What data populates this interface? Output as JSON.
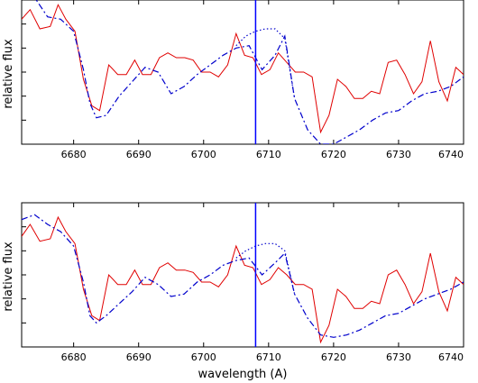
{
  "chart_data": [
    {
      "type": "line",
      "ylabel": "relative flux",
      "xlabel": "",
      "xlim": [
        6672,
        6740
      ],
      "ylim": [
        0,
        6
      ],
      "x_ticks": [
        "6680",
        "6690",
        "6700",
        "6710",
        "6720",
        "6730",
        "6740"
      ],
      "marker_line_x": 6708,
      "grid": false,
      "colors": {
        "observed": "#e00000",
        "model": "#0000cc",
        "model_dotted": "#0000cc",
        "marker": "#0000ff"
      },
      "series": [
        {
          "style": "solid",
          "x": [
            6672,
            6673.3,
            6674.8,
            6676.4,
            6677.6,
            6678.8,
            6680.2,
            6681.5,
            6682.8,
            6684,
            6685.4,
            6686.8,
            6688.1,
            6689.4,
            6690.6,
            6691.9,
            6693.2,
            6694.5,
            6695.8,
            6697.1,
            6698.4,
            6699.7,
            6701,
            6702.3,
            6703.7,
            6705,
            6706.3,
            6707.6,
            6708.9,
            6710.2,
            6711.5,
            6712.8,
            6714.1,
            6715.4,
            6716.7,
            6718,
            6719.3,
            6720.6,
            6721.9,
            6723.2,
            6724.5,
            6725.8,
            6727.1,
            6728.4,
            6729.7,
            6731,
            6732.3,
            6733.6,
            6734.9,
            6736.2,
            6737.5,
            6738.8,
            6740
          ],
          "y": [
            5.2,
            5.6,
            4.8,
            4.9,
            5.8,
            5.2,
            4.7,
            2.7,
            1.6,
            1.4,
            3.3,
            2.9,
            2.9,
            3.5,
            2.9,
            2.9,
            3.6,
            3.8,
            3.6,
            3.6,
            3.5,
            3.0,
            3.0,
            2.8,
            3.3,
            4.6,
            3.7,
            3.6,
            2.9,
            3.1,
            3.8,
            3.4,
            3.0,
            3.0,
            2.8,
            0.5,
            1.2,
            2.7,
            2.4,
            1.9,
            1.9,
            2.2,
            2.1,
            3.4,
            3.5,
            2.9,
            2.1,
            2.6,
            4.3,
            2.6,
            1.8,
            3.2,
            2.9
          ]
        },
        {
          "style": "dash-dot",
          "x": [
            6672,
            6674,
            6676,
            6678,
            6680,
            6681.5,
            6682.5,
            6683.5,
            6685,
            6687,
            6689,
            6691,
            6693,
            6695,
            6697,
            6699,
            6701,
            6703,
            6705,
            6707,
            6709,
            6711,
            6712.5,
            6714,
            6716,
            6718,
            6720,
            6722,
            6724,
            6726,
            6728,
            6730,
            6732,
            6734,
            6736,
            6738,
            6740
          ],
          "y": [
            6.7,
            6.1,
            5.3,
            5.2,
            4.7,
            3.1,
            1.7,
            1.1,
            1.2,
            2.0,
            2.6,
            3.2,
            3.0,
            2.1,
            2.4,
            2.9,
            3.3,
            3.7,
            4.0,
            4.1,
            3.1,
            3.7,
            4.5,
            1.9,
            0.6,
            0.0,
            0.0,
            0.3,
            0.6,
            1.0,
            1.3,
            1.4,
            1.8,
            2.1,
            2.2,
            2.4,
            2.8
          ]
        },
        {
          "style": "dotted",
          "x": [
            6705,
            6706.5,
            6708,
            6709.5,
            6711,
            6712.5,
            6714
          ],
          "y": [
            4.1,
            4.5,
            4.7,
            4.8,
            4.8,
            4.4,
            1.9
          ]
        }
      ]
    },
    {
      "type": "line",
      "ylabel": "relative flux",
      "xlabel": "wavelength (A)",
      "xlim": [
        6672,
        6740
      ],
      "ylim": [
        0,
        6
      ],
      "x_ticks": [
        "6680",
        "6690",
        "6700",
        "6710",
        "6720",
        "6730",
        "6740"
      ],
      "marker_line_x": 6708,
      "grid": false,
      "colors": {
        "observed": "#e00000",
        "model": "#0000cc",
        "model_dotted": "#0000cc",
        "marker": "#0000ff"
      },
      "series": [
        {
          "style": "solid",
          "x": [
            6672,
            6673.3,
            6674.8,
            6676.4,
            6677.6,
            6678.8,
            6680.2,
            6681.5,
            6682.8,
            6684,
            6685.4,
            6686.8,
            6688.1,
            6689.4,
            6690.6,
            6691.9,
            6693.2,
            6694.5,
            6695.8,
            6697.1,
            6698.4,
            6699.7,
            6701,
            6702.3,
            6703.7,
            6705,
            6706.3,
            6707.6,
            6708.9,
            6710.2,
            6711.5,
            6712.8,
            6714.1,
            6715.4,
            6716.7,
            6718,
            6719.3,
            6720.6,
            6721.9,
            6723.2,
            6724.5,
            6725.8,
            6727.1,
            6728.4,
            6729.7,
            6731,
            6732.3,
            6733.6,
            6734.9,
            6736.2,
            6737.5,
            6738.8,
            6740
          ],
          "y": [
            4.6,
            5.1,
            4.4,
            4.5,
            5.4,
            4.8,
            4.3,
            2.4,
            1.3,
            1.1,
            3.0,
            2.6,
            2.6,
            3.2,
            2.6,
            2.6,
            3.3,
            3.5,
            3.2,
            3.2,
            3.1,
            2.7,
            2.7,
            2.5,
            3.0,
            4.2,
            3.4,
            3.3,
            2.6,
            2.8,
            3.3,
            3.0,
            2.6,
            2.6,
            2.4,
            0.2,
            0.9,
            2.4,
            2.1,
            1.6,
            1.6,
            1.9,
            1.8,
            3.0,
            3.2,
            2.6,
            1.8,
            2.3,
            3.9,
            2.3,
            1.5,
            2.9,
            2.6
          ]
        },
        {
          "style": "dash-dot",
          "x": [
            6672,
            6674,
            6676,
            6678,
            6680,
            6681.5,
            6682.5,
            6683.5,
            6685,
            6687,
            6689,
            6691,
            6693,
            6695,
            6697,
            6699,
            6701,
            6703,
            6705,
            6707,
            6709,
            6711,
            6712.5,
            6714,
            6716,
            6718,
            6720,
            6722,
            6724,
            6726,
            6728,
            6730,
            6732,
            6734,
            6736,
            6738,
            6740
          ],
          "y": [
            5.3,
            5.5,
            5.1,
            4.8,
            4.2,
            2.7,
            1.3,
            1.0,
            1.3,
            1.8,
            2.3,
            2.9,
            2.6,
            2.1,
            2.2,
            2.7,
            3.0,
            3.4,
            3.6,
            3.7,
            3.0,
            3.5,
            3.9,
            2.2,
            1.2,
            0.5,
            0.4,
            0.5,
            0.7,
            1.0,
            1.3,
            1.4,
            1.7,
            2.0,
            2.2,
            2.4,
            2.7
          ]
        },
        {
          "style": "dotted",
          "x": [
            6705,
            6706.5,
            6708,
            6709.5,
            6711,
            6712.5,
            6714
          ],
          "y": [
            3.7,
            4.0,
            4.2,
            4.3,
            4.3,
            4.0,
            2.2
          ]
        }
      ]
    }
  ]
}
